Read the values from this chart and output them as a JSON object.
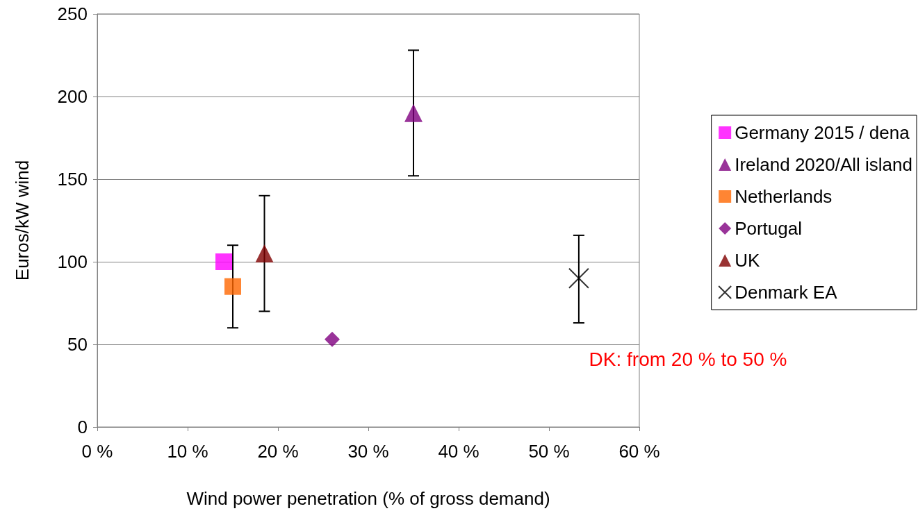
{
  "chart_data": {
    "type": "scatter",
    "xlabel": "Wind power penetration (% of gross demand)",
    "ylabel": "Euros/kW wind",
    "xlim": [
      0,
      60
    ],
    "xticks": [
      {
        "value": 0,
        "label": "0 %"
      },
      {
        "value": 10,
        "label": "10 %"
      },
      {
        "value": 20,
        "label": "20 %"
      },
      {
        "value": 30,
        "label": "30 %"
      },
      {
        "value": 40,
        "label": "40 %"
      },
      {
        "value": 50,
        "label": "50 %"
      },
      {
        "value": 60,
        "label": "60 %"
      }
    ],
    "ylim": [
      0,
      250
    ],
    "yticks": [
      0,
      50,
      100,
      150,
      200,
      250
    ],
    "grid": "y",
    "legend": "right",
    "series": [
      {
        "name": "Germany 2015 / dena",
        "color": "#ff00ff",
        "marker": "square",
        "x": [
          14
        ],
        "values": [
          100
        ]
      },
      {
        "name": "Ireland 2020/All island",
        "color": "#800080",
        "marker": "triangle",
        "x": [
          35
        ],
        "values": [
          190
        ],
        "errors": [
          [
            152,
            228
          ]
        ]
      },
      {
        "name": "Netherlands",
        "color": "#ff6600",
        "marker": "square",
        "x": [
          15
        ],
        "values": [
          85
        ],
        "errors": [
          [
            60,
            110
          ]
        ]
      },
      {
        "name": "Portugal",
        "color": "#800080",
        "marker": "diamond",
        "x": [
          26
        ],
        "values": [
          53
        ]
      },
      {
        "name": "UK",
        "color": "#800000",
        "marker": "triangle",
        "x": [
          18.5
        ],
        "values": [
          105
        ],
        "errors": [
          [
            70,
            140
          ]
        ]
      },
      {
        "name": "Denmark EA",
        "color": "#000000",
        "marker": "cross",
        "x": [
          53.3
        ],
        "values": [
          90
        ],
        "errors": [
          [
            63,
            116
          ]
        ]
      }
    ],
    "annotations": [
      "DK: from 20 % to 50 %"
    ]
  }
}
